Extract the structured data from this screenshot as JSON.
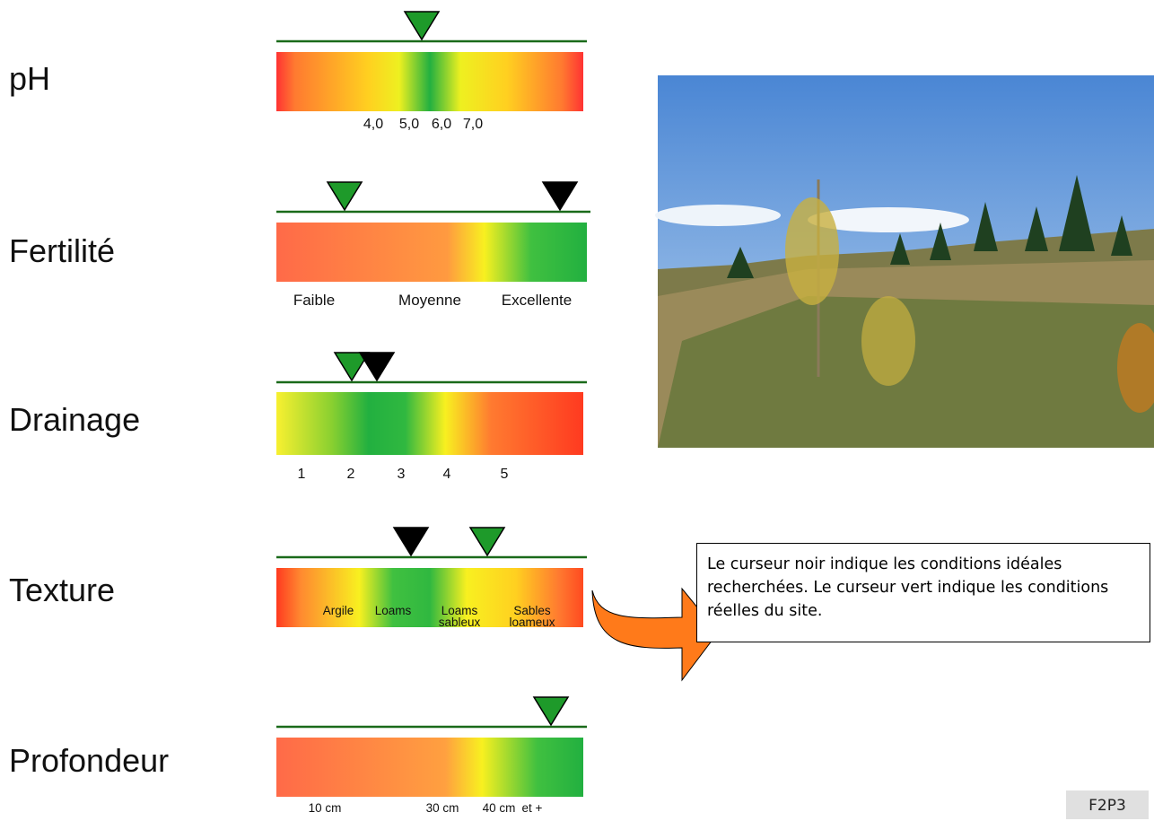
{
  "rows": [
    {
      "label": "pH",
      "scale": [
        [
          "4,0"
        ],
        [
          "5,0"
        ],
        [
          "6,0"
        ],
        [
          "7,0"
        ]
      ]
    },
    {
      "label": "Fertilité",
      "scale": [
        [
          "Faible"
        ],
        [
          "Moyenne"
        ],
        [
          "Excellente"
        ]
      ]
    },
    {
      "label": "Drainage",
      "scale": [
        [
          "1"
        ],
        [
          "2"
        ],
        [
          "3"
        ],
        [
          "4"
        ],
        [
          "5"
        ]
      ]
    },
    {
      "label": "Texture",
      "scale": [
        [
          "Argile"
        ],
        [
          "Loams"
        ],
        [
          "Loams",
          "sableux"
        ],
        [
          "Sables",
          "loameux"
        ]
      ]
    },
    {
      "label": "Profondeur",
      "scale": [
        [
          "10 cm"
        ],
        [
          "30 cm"
        ],
        [
          "40 cm"
        ],
        [
          "et +"
        ]
      ]
    }
  ],
  "note": "Le curseur noir indique les conditions idéales recherchées.  Le curseur vert indique les conditions réelles du site.",
  "page_code": "F2P3"
}
